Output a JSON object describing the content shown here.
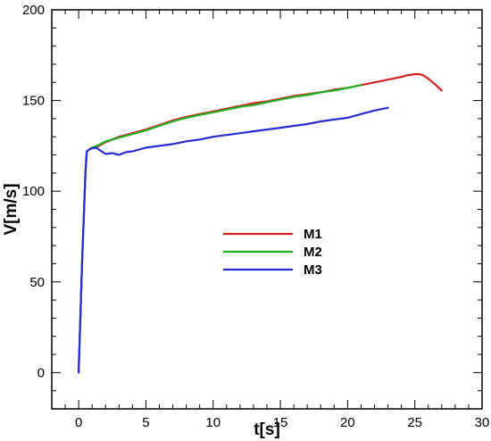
{
  "chart_data": {
    "type": "line",
    "xlabel": "t[s]",
    "ylabel": "V[m/s]",
    "xlim": [
      -2,
      30
    ],
    "ylim": [
      -20,
      200
    ],
    "x_ticks": [
      0,
      5,
      10,
      15,
      20,
      25,
      30
    ],
    "y_ticks": [
      0,
      50,
      100,
      150,
      200
    ],
    "x_tick_labels": [
      "0",
      "5",
      "10",
      "15",
      "20",
      "25",
      "30"
    ],
    "y_tick_labels": [
      "0",
      "50",
      "100",
      "150",
      "200"
    ],
    "grid": false,
    "legend_position": "center",
    "series": [
      {
        "name": "M1",
        "color": "#d62020",
        "x": [
          0.0,
          0.25,
          0.5,
          0.6,
          1.0,
          1.5,
          2.0,
          3.0,
          4.0,
          5.0,
          6.0,
          7.0,
          8.0,
          9.0,
          10.0,
          11.0,
          12.0,
          13.0,
          14.0,
          15.0,
          16.0,
          17.0,
          18.0,
          19.0,
          20.0,
          21.0,
          22.0,
          23.0,
          24.0,
          24.5,
          25.0,
          25.3,
          25.6,
          26.0,
          26.5,
          27.0
        ],
        "y": [
          0,
          60,
          110,
          122,
          124,
          125,
          127,
          130,
          132,
          134,
          136.5,
          139,
          141,
          142.5,
          144,
          145.5,
          147,
          148.5,
          149.5,
          151,
          152.5,
          153.5,
          154.5,
          156,
          157,
          158.5,
          160,
          161.5,
          163,
          164,
          164.5,
          164.5,
          164,
          162,
          159,
          155.5
        ]
      },
      {
        "name": "M2",
        "color": "#22b022",
        "x": [
          0.0,
          0.25,
          0.5,
          0.6,
          1.0,
          1.5,
          2.0,
          3.0,
          4.0,
          5.0,
          6.0,
          7.0,
          8.0,
          9.0,
          10.0,
          11.0,
          12.0,
          13.0,
          14.0,
          15.0,
          16.0,
          17.0,
          18.0,
          19.0,
          20.0,
          21.0
        ],
        "y": [
          0,
          60,
          110,
          122,
          124,
          125.5,
          127.5,
          129.5,
          131.5,
          133.5,
          136,
          138.5,
          140.5,
          142,
          143.5,
          145,
          146.5,
          147.5,
          149,
          150.5,
          152,
          153,
          154.5,
          155.5,
          157,
          158.5
        ]
      },
      {
        "name": "M3",
        "color": "#2a2ad4",
        "x": [
          0.0,
          0.25,
          0.5,
          0.6,
          0.9,
          1.3,
          1.6,
          2.0,
          2.5,
          3.0,
          3.5,
          4.0,
          5.0,
          6.0,
          7.0,
          8.0,
          9.0,
          10.0,
          11.0,
          12.0,
          13.0,
          14.0,
          15.0,
          16.0,
          17.0,
          18.0,
          19.0,
          20.0,
          21.0,
          22.0,
          23.0
        ],
        "y": [
          0,
          60,
          110,
          122,
          123.5,
          124,
          122.5,
          120.5,
          121,
          120,
          121.5,
          122,
          124,
          125,
          126,
          127.5,
          128.5,
          130,
          131,
          132,
          133,
          134,
          135,
          136,
          137,
          138.5,
          139.5,
          140.5,
          142.5,
          144.5,
          146
        ]
      }
    ]
  }
}
